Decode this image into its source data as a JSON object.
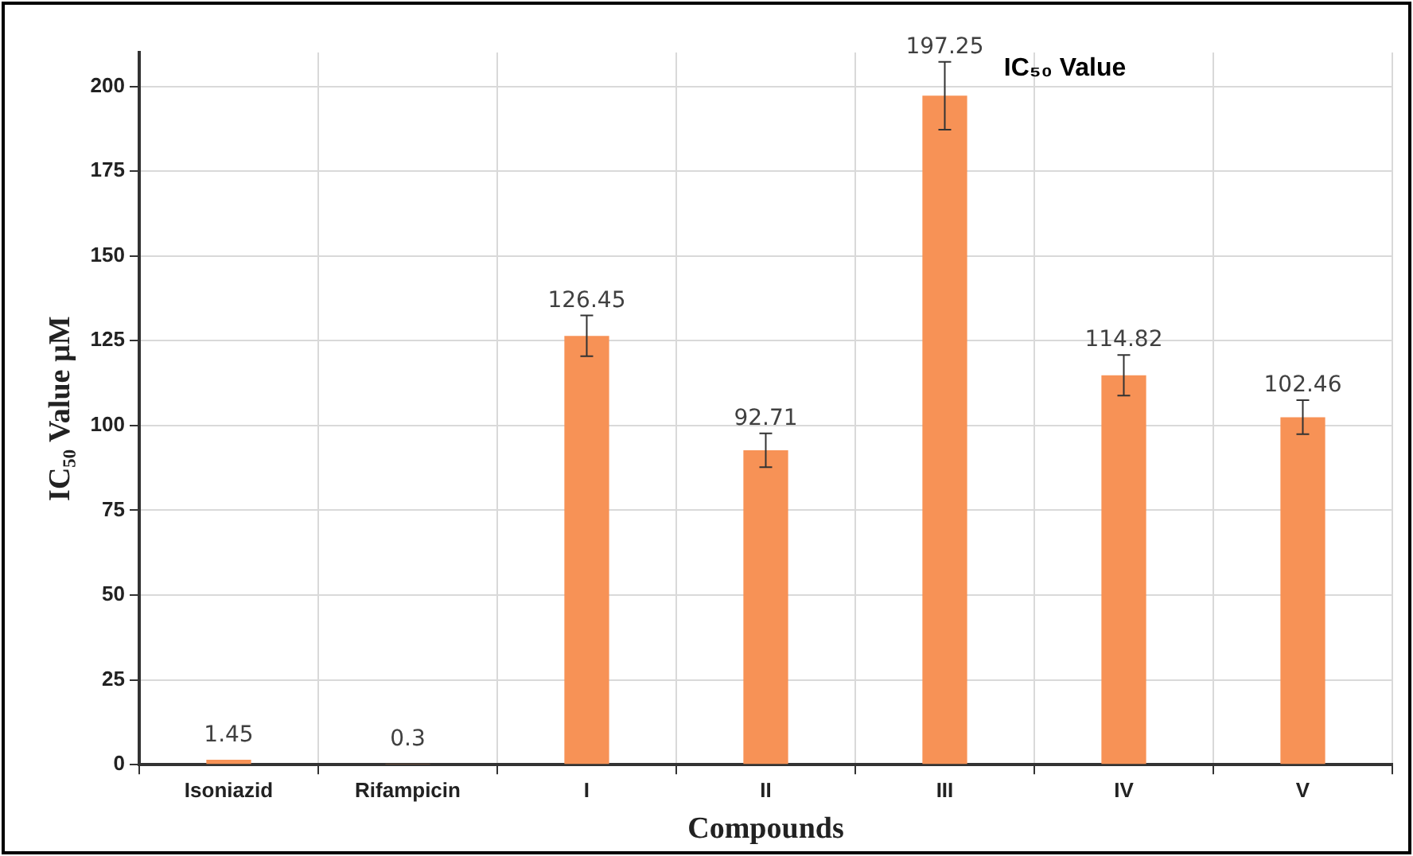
{
  "chart_data": {
    "type": "bar",
    "title": "IC₅₀ Value",
    "xlabel": "Compounds",
    "ylabel": "IC₅₀ Value µM",
    "categories": [
      "Isoniazid",
      "Rifampicin",
      "I",
      "II",
      "III",
      "IV",
      "V"
    ],
    "values": [
      1.45,
      0.3,
      126.45,
      92.71,
      197.25,
      114.82,
      102.46
    ],
    "errors": [
      null,
      null,
      6,
      5,
      10,
      6,
      5
    ],
    "color": "#f79256",
    "ylim": [
      0,
      210
    ],
    "yticks": [
      0,
      25,
      50,
      75,
      100,
      125,
      150,
      175,
      200
    ],
    "grid": true,
    "data_labels": true
  }
}
